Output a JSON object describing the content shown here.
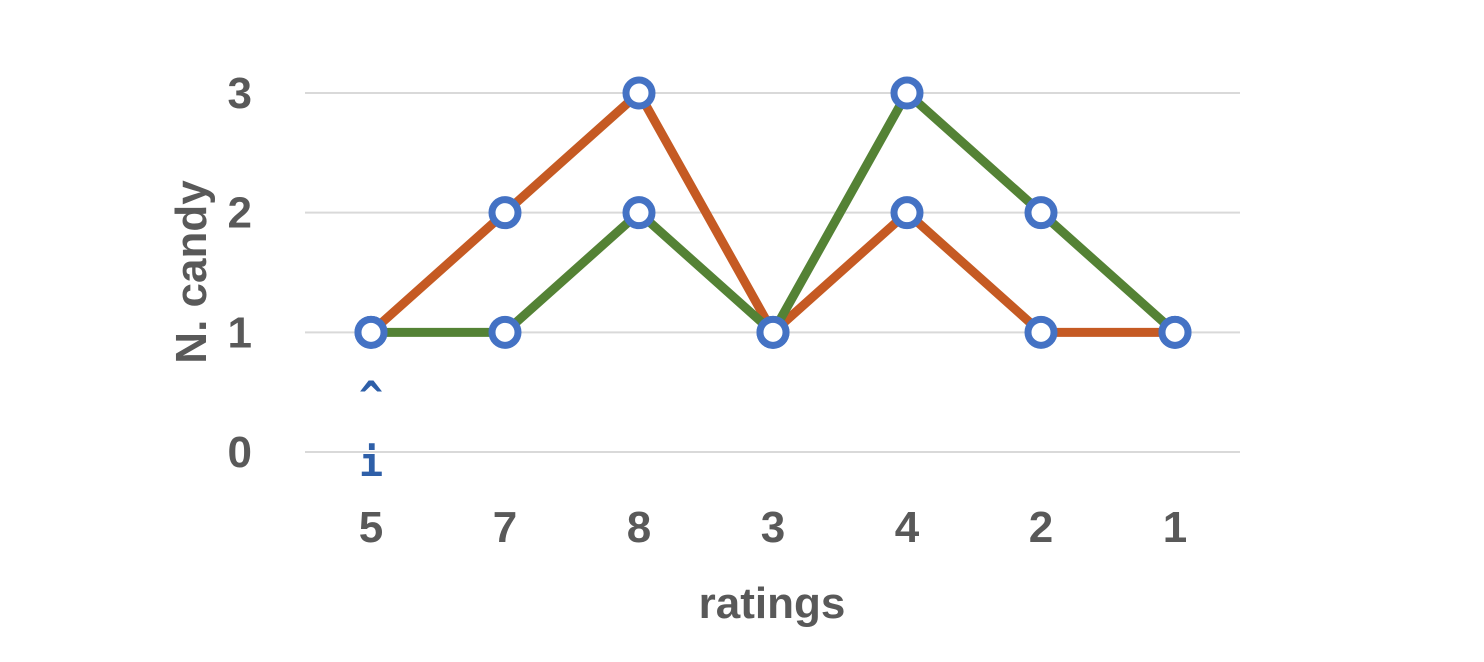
{
  "chart_data": {
    "type": "line",
    "categories": [
      "5",
      "7",
      "8",
      "3",
      "4",
      "2",
      "1"
    ],
    "series": [
      {
        "values": [
          1,
          2,
          3,
          1,
          2,
          1,
          1
        ],
        "color": "#c55a23"
      },
      {
        "values": [
          1,
          1,
          2,
          1,
          3,
          2,
          1
        ],
        "color": "#548235"
      }
    ],
    "marker_color": "#4472c4",
    "y_ticks": [
      "0",
      "1",
      "2",
      "3"
    ],
    "ylim": [
      0,
      3
    ],
    "xlabel": "ratings",
    "ylabel": "N. candy",
    "grid": true,
    "annotations": [
      {
        "text": "^",
        "category_index": 0,
        "color": "#2e5fa8"
      },
      {
        "text": "i",
        "category_index": 0,
        "color": "#2e5fa8"
      }
    ]
  }
}
